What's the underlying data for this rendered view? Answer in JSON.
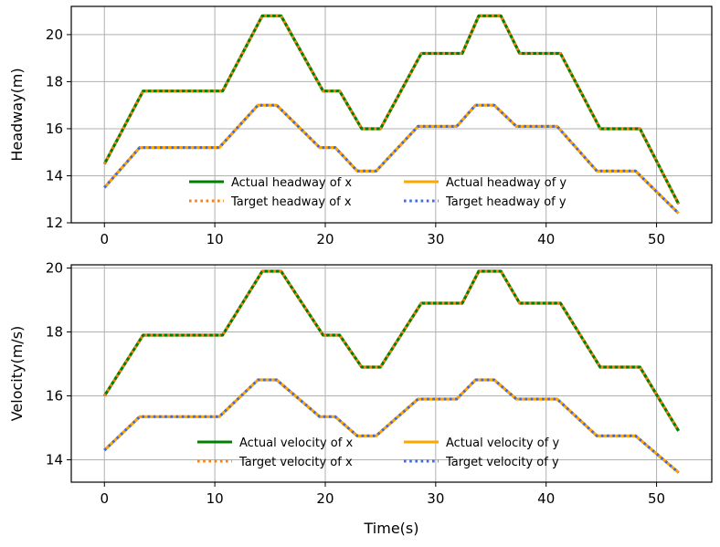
{
  "chart_data": [
    {
      "type": "line",
      "xlabel": "",
      "ylabel": "Headway(m)",
      "xlim": [
        -3,
        55
      ],
      "ylim": [
        12,
        21.2
      ],
      "xticks": [
        0,
        10,
        20,
        30,
        40,
        50
      ],
      "xtick_labels": [
        "0",
        "10",
        "20",
        "30",
        "40",
        "50"
      ],
      "yticks": [
        12,
        14,
        16,
        18,
        20
      ],
      "ytick_labels": [
        "12",
        "14",
        "16",
        "18",
        "20"
      ],
      "grid": true,
      "legend_position": "lower-center",
      "series": [
        {
          "name": "Actual headway of x",
          "color": "#008000",
          "style": "solid",
          "x": [
            0,
            3.5,
            10.7,
            14.3,
            16,
            19.8,
            21.3,
            23.3,
            25,
            28.7,
            32.4,
            33.9,
            35.9,
            37.6,
            41.3,
            44.9,
            48.5,
            52
          ],
          "y": [
            14.5,
            17.6,
            17.6,
            20.8,
            20.8,
            17.6,
            17.6,
            16.0,
            16.0,
            19.2,
            19.2,
            20.8,
            20.8,
            19.2,
            19.2,
            16.0,
            16.0,
            12.8
          ]
        },
        {
          "name": "Target headway of x",
          "color": "#ff7f0e",
          "style": "dotted",
          "x": [
            0,
            3.5,
            10.7,
            14.3,
            16,
            19.8,
            21.3,
            23.3,
            25,
            28.7,
            32.4,
            33.9,
            35.9,
            37.6,
            41.3,
            44.9,
            48.5,
            52
          ],
          "y": [
            14.5,
            17.6,
            17.6,
            20.8,
            20.8,
            17.6,
            17.6,
            16.0,
            16.0,
            19.2,
            19.2,
            20.8,
            20.8,
            19.2,
            19.2,
            16.0,
            16.0,
            12.8
          ]
        },
        {
          "name": "Actual headway of y",
          "color": "#ffa500",
          "style": "solid",
          "x": [
            0,
            3.2,
            10.4,
            13.9,
            15.6,
            19.5,
            20.9,
            22.9,
            24.6,
            28.4,
            31.9,
            33.6,
            35.3,
            37.3,
            41.0,
            44.6,
            48.1,
            52
          ],
          "y": [
            13.5,
            15.2,
            15.2,
            17.0,
            17.0,
            15.2,
            15.2,
            14.2,
            14.2,
            16.1,
            16.1,
            17.0,
            17.0,
            16.1,
            16.1,
            14.2,
            14.2,
            12.4
          ]
        },
        {
          "name": "Target headway of y",
          "color": "#4169e1",
          "style": "dotted",
          "x": [
            0,
            3.2,
            10.4,
            13.9,
            15.6,
            19.5,
            20.9,
            22.9,
            24.6,
            28.4,
            31.9,
            33.6,
            35.3,
            37.3,
            41.0,
            44.6,
            48.1,
            52
          ],
          "y": [
            13.5,
            15.2,
            15.2,
            17.0,
            17.0,
            15.2,
            15.2,
            14.2,
            14.2,
            16.1,
            16.1,
            17.0,
            17.0,
            16.1,
            16.1,
            14.2,
            14.2,
            12.4
          ]
        }
      ]
    },
    {
      "type": "line",
      "xlabel": "Time(s)",
      "ylabel": "Velocity(m/s)",
      "xlim": [
        -3,
        55
      ],
      "ylim": [
        13.3,
        20.1
      ],
      "xticks": [
        0,
        10,
        20,
        30,
        40,
        50
      ],
      "xtick_labels": [
        "0",
        "10",
        "20",
        "30",
        "40",
        "50"
      ],
      "yticks": [
        14,
        16,
        18,
        20
      ],
      "ytick_labels": [
        "14",
        "16",
        "18",
        "20"
      ],
      "grid": true,
      "legend_position": "lower-center",
      "series": [
        {
          "name": "Actual velocity of x",
          "color": "#008000",
          "style": "solid",
          "x": [
            0,
            3.5,
            10.7,
            14.3,
            16,
            19.8,
            21.3,
            23.3,
            25,
            28.7,
            32.4,
            33.9,
            35.9,
            37.6,
            41.3,
            44.9,
            48.5,
            52
          ],
          "y": [
            16.0,
            17.9,
            17.9,
            19.9,
            19.9,
            17.9,
            17.9,
            16.9,
            16.9,
            18.9,
            18.9,
            19.9,
            19.9,
            18.9,
            18.9,
            16.9,
            16.9,
            14.9
          ]
        },
        {
          "name": "Target velocity of x",
          "color": "#ff7f0e",
          "style": "dotted",
          "x": [
            0,
            3.5,
            10.7,
            14.3,
            16,
            19.8,
            21.3,
            23.3,
            25,
            28.7,
            32.4,
            33.9,
            35.9,
            37.6,
            41.3,
            44.9,
            48.5,
            52
          ],
          "y": [
            16.0,
            17.9,
            17.9,
            19.9,
            19.9,
            17.9,
            17.9,
            16.9,
            16.9,
            18.9,
            18.9,
            19.9,
            19.9,
            18.9,
            18.9,
            16.9,
            16.9,
            14.9
          ]
        },
        {
          "name": "Actual velocity of y",
          "color": "#ffa500",
          "style": "solid",
          "x": [
            0,
            3.2,
            10.4,
            13.9,
            15.6,
            19.5,
            20.9,
            22.9,
            24.6,
            28.4,
            31.9,
            33.6,
            35.3,
            37.3,
            41.0,
            44.6,
            48.1,
            52
          ],
          "y": [
            14.3,
            15.35,
            15.35,
            16.5,
            16.5,
            15.35,
            15.35,
            14.75,
            14.75,
            15.9,
            15.9,
            16.5,
            16.5,
            15.9,
            15.9,
            14.75,
            14.75,
            13.6
          ]
        },
        {
          "name": "Target velocity of y",
          "color": "#4169e1",
          "style": "dotted",
          "x": [
            0,
            3.2,
            10.4,
            13.9,
            15.6,
            19.5,
            20.9,
            22.9,
            24.6,
            28.4,
            31.9,
            33.6,
            35.3,
            37.3,
            41.0,
            44.6,
            48.1,
            52
          ],
          "y": [
            14.3,
            15.35,
            15.35,
            16.5,
            16.5,
            15.35,
            15.35,
            14.75,
            14.75,
            15.9,
            15.9,
            16.5,
            16.5,
            15.9,
            15.9,
            14.75,
            14.75,
            13.6
          ]
        }
      ]
    }
  ]
}
